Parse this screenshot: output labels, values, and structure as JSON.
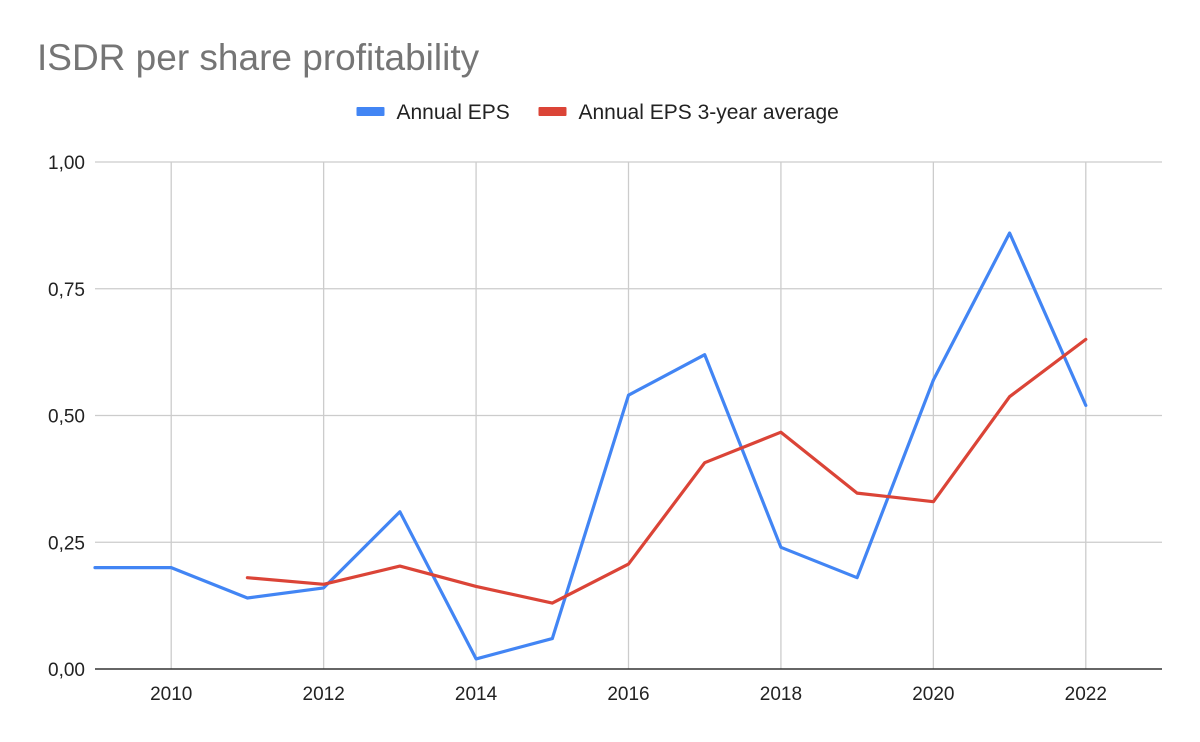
{
  "chart_data": {
    "type": "line",
    "title": "ISDR per share profitability",
    "xlabel": "",
    "ylabel": "",
    "x": [
      2009,
      2010,
      2011,
      2012,
      2013,
      2014,
      2015,
      2016,
      2017,
      2018,
      2019,
      2020,
      2021,
      2022
    ],
    "xlim": [
      2009,
      2023
    ],
    "ylim": [
      0,
      1
    ],
    "x_ticks": [
      2010,
      2012,
      2014,
      2016,
      2018,
      2020,
      2022
    ],
    "x_tick_labels": [
      "2010",
      "2012",
      "2014",
      "2016",
      "2018",
      "2020",
      "2022"
    ],
    "y_ticks": [
      0,
      0.25,
      0.5,
      0.75,
      1
    ],
    "y_tick_labels": [
      "0,00",
      "0,25",
      "0,50",
      "0,75",
      "1,00"
    ],
    "grid": true,
    "legend_position": "top",
    "series": [
      {
        "name": "Annual EPS",
        "color": "#4285f4",
        "values": [
          0.2,
          0.2,
          0.14,
          0.16,
          0.31,
          0.02,
          0.06,
          0.54,
          0.62,
          0.24,
          0.18,
          0.57,
          0.86,
          0.52
        ]
      },
      {
        "name": "Annual EPS 3-year average",
        "color": "#db4437",
        "values": [
          null,
          null,
          0.18,
          0.167,
          0.203,
          0.163,
          0.13,
          0.207,
          0.407,
          0.467,
          0.347,
          0.33,
          0.537,
          0.65
        ]
      }
    ]
  },
  "colors": {
    "title": "#757575",
    "text": "#222222",
    "grid": "#cccccc",
    "axis": "#333333"
  }
}
